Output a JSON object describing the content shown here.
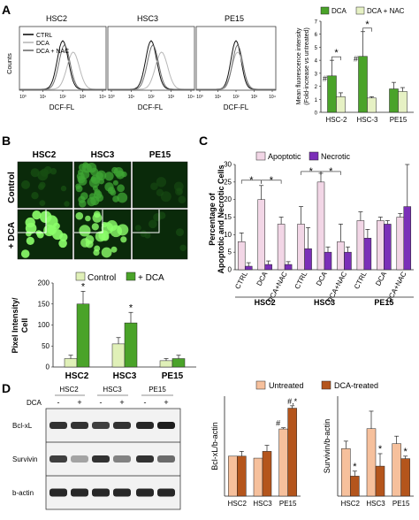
{
  "panels": {
    "A": "A",
    "B": "B",
    "C": "C",
    "D": "D"
  },
  "colors": {
    "dca_green": "#4aa329",
    "control_green": "#e0f0b8",
    "dca_nac": "#e6f1c4",
    "apoptotic": "#f2d6e6",
    "necrotic": "#7b2fb8",
    "untreated": "#f6c09c",
    "dca_treated": "#b4551c",
    "micro_bright": "#8cff6a",
    "micro_mid": "#3fa634",
    "micro_dim": "#174d12"
  },
  "panel_a": {
    "histograms": {
      "titles": [
        "HSC2",
        "HSC3",
        "PE15"
      ],
      "ylabel": "Counts",
      "xlabel": "DCF-FL",
      "legend": [
        "CTRL",
        "DCA",
        "DCA + NAC"
      ],
      "tick_labels": [
        "10⁰",
        "10¹",
        "10²",
        "10³",
        "10⁴"
      ]
    },
    "chart_data": {
      "type": "bar",
      "categories": [
        "HSC-2",
        "HSC-3",
        "PE15"
      ],
      "series": [
        {
          "name": "DCA",
          "values": [
            2.8,
            4.3,
            1.8
          ],
          "errors": [
            1.2,
            1.9,
            0.5
          ]
        },
        {
          "name": "DCA + NAC",
          "values": [
            1.2,
            1.1,
            1.6
          ],
          "errors": [
            0.3,
            0.1,
            0.3
          ]
        }
      ],
      "ylabel": "Mean fluorescence intensity (Fold-increase vs untreated)",
      "ylim": [
        0,
        7
      ],
      "yticks": [
        0,
        1,
        2,
        3,
        4,
        5,
        6,
        7
      ],
      "annotations": [
        {
          "text": "#",
          "category": "HSC-2",
          "series": "DCA"
        },
        {
          "text": "#",
          "category": "HSC-3",
          "series": "DCA"
        },
        {
          "text": "*",
          "category": "HSC-2"
        },
        {
          "text": "*",
          "category": "HSC-3"
        }
      ]
    }
  },
  "panel_b": {
    "columns": [
      "HSC2",
      "HSC3",
      "PE15"
    ],
    "rows": [
      "Control",
      "+ DCA"
    ],
    "chart_data": {
      "type": "bar",
      "categories": [
        "HSC2",
        "HSC3",
        "PE15"
      ],
      "series": [
        {
          "name": "Control",
          "values": [
            20,
            55,
            15
          ],
          "errors": [
            8,
            15,
            5
          ]
        },
        {
          "name": "+ DCA",
          "values": [
            150,
            105,
            20
          ],
          "errors": [
            30,
            25,
            8
          ]
        }
      ],
      "ylabel": "Pixel Intensity/ Cell",
      "ylim": [
        0,
        200
      ],
      "yticks": [
        0,
        50,
        100,
        150,
        200
      ],
      "annotations": [
        {
          "text": "*",
          "category": "HSC2",
          "series": "+ DCA"
        },
        {
          "text": "*",
          "category": "HSC3",
          "series": "+ DCA"
        }
      ]
    }
  },
  "panel_c": {
    "chart_data": {
      "type": "bar",
      "groups": [
        "HSC2",
        "HSC3",
        "PE15"
      ],
      "conditions": [
        "CTRL",
        "DCA",
        "DCA+NAC"
      ],
      "series": [
        {
          "name": "Apoptotic",
          "values": [
            8,
            20,
            13,
            13,
            25,
            8,
            14,
            14,
            15
          ],
          "errors": [
            2.5,
            4,
            2,
            5,
            2.5,
            5,
            2.5,
            1,
            1
          ]
        },
        {
          "name": "Necrotic",
          "values": [
            1,
            1.5,
            1.5,
            6,
            5,
            5,
            9,
            13,
            18
          ],
          "errors": [
            1,
            1,
            0.8,
            6,
            1.5,
            1.5,
            2.5,
            1,
            12
          ]
        }
      ],
      "ylabel": "Percentage of Apoptotic and Necrotic Cells",
      "ylim": [
        0,
        30
      ],
      "yticks": [
        0,
        5,
        10,
        15,
        20,
        25,
        30
      ],
      "annotations": [
        "*",
        "*",
        "*",
        "*"
      ]
    }
  },
  "panel_d": {
    "blot": {
      "columns": [
        "HSC2",
        "HSC3",
        "PE15"
      ],
      "treatment_label": "DCA",
      "treatment_signs": [
        "-",
        "+",
        "-",
        "+",
        "-",
        "+"
      ],
      "proteins": [
        "Bcl-xL",
        "Survivin",
        "b-actin"
      ]
    },
    "legend": [
      "Untreated",
      "DCA-treated"
    ],
    "bcl_chart": {
      "type": "bar",
      "categories": [
        "HSC2",
        "HSC3",
        "PE15"
      ],
      "series": [
        {
          "name": "Untreated",
          "values": [
            1.0,
            0.95,
            1.68
          ],
          "errors": [
            0,
            0,
            0.03
          ]
        },
        {
          "name": "DCA-treated",
          "values": [
            1.0,
            1.12,
            2.2
          ],
          "errors": [
            0.12,
            0.15,
            0.06
          ]
        }
      ],
      "ylabel": "Bcl-xL/b-actin",
      "ylim": [
        0,
        2.5
      ],
      "yticks": [],
      "annotations": [
        {
          "text": "#",
          "category": "PE15",
          "series": "Untreated"
        },
        {
          "text": "#,*",
          "category": "PE15",
          "series": "DCA-treated"
        }
      ]
    },
    "survivin_chart": {
      "type": "bar",
      "categories": [
        "HSC2",
        "HSC3",
        "PE15"
      ],
      "series": [
        {
          "name": "Untreated",
          "values": [
            0.95,
            1.35,
            1.05
          ],
          "errors": [
            0.15,
            0.35,
            0.15
          ]
        },
        {
          "name": "DCA-treated",
          "values": [
            0.4,
            0.6,
            0.75
          ],
          "errors": [
            0.1,
            0.25,
            0.05
          ]
        }
      ],
      "ylabel": "Survivin/b-actin",
      "ylim": [
        0,
        2
      ],
      "yticks": [],
      "annotations": [
        {
          "text": "*",
          "category": "HSC2",
          "series": "DCA-treated"
        },
        {
          "text": "*",
          "category": "HSC3",
          "series": "DCA-treated"
        },
        {
          "text": "*",
          "category": "PE15",
          "series": "DCA-treated"
        }
      ]
    }
  }
}
